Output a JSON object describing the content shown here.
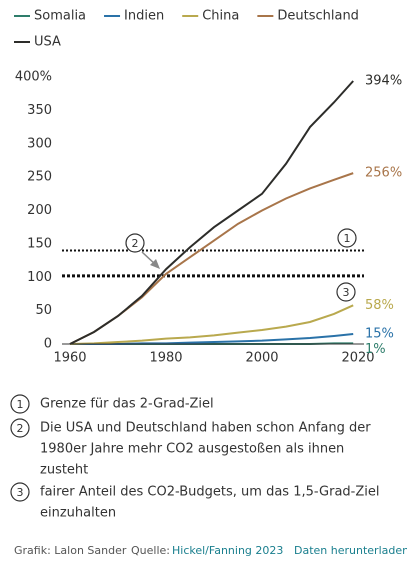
{
  "chart_data": {
    "type": "line",
    "x": [
      1960,
      1965,
      1970,
      1975,
      1980,
      1985,
      1990,
      1995,
      2000,
      2005,
      2010,
      2015,
      2019
    ],
    "series": [
      {
        "name": "Somalia",
        "color": "#2e7d6b",
        "values": [
          0,
          0,
          0,
          0,
          0,
          0,
          0,
          0,
          0,
          0,
          0,
          1,
          1
        ],
        "value_labels": [
          null,
          null,
          null,
          null,
          null,
          null,
          null,
          null,
          null,
          null,
          null,
          null,
          "1%"
        ]
      },
      {
        "name": "Indien",
        "color": "#2a72a8",
        "values": [
          0,
          0,
          0,
          1,
          1,
          2,
          3,
          4,
          5,
          7,
          9,
          12,
          15
        ],
        "value_labels": [
          null,
          null,
          null,
          null,
          null,
          null,
          null,
          null,
          null,
          null,
          null,
          null,
          "15%"
        ]
      },
      {
        "name": "China",
        "color": "#b9a94e",
        "values": [
          0,
          1,
          3,
          5,
          8,
          10,
          13,
          17,
          21,
          26,
          33,
          45,
          58
        ],
        "value_labels": [
          null,
          null,
          null,
          null,
          null,
          null,
          null,
          null,
          null,
          null,
          null,
          null,
          "58%"
        ]
      },
      {
        "name": "Deutschland",
        "color": "#a8754a",
        "values": [
          0,
          18,
          42,
          70,
          105,
          130,
          155,
          180,
          200,
          218,
          233,
          246,
          256
        ],
        "value_labels": [
          null,
          null,
          null,
          null,
          null,
          null,
          null,
          null,
          null,
          null,
          null,
          null,
          "256%"
        ]
      },
      {
        "name": "USA",
        "color": "#2d2d2a",
        "values": [
          0,
          18,
          42,
          72,
          112,
          145,
          175,
          200,
          225,
          270,
          325,
          362,
          394
        ],
        "value_labels": [
          null,
          null,
          null,
          null,
          null,
          null,
          null,
          null,
          null,
          null,
          null,
          null,
          "394%"
        ]
      }
    ],
    "xlim": [
      1960,
      2020
    ],
    "xticks": [
      1960,
      1980,
      2000,
      2020
    ],
    "ylim": [
      0,
      400
    ],
    "yticks": [
      0,
      50,
      100,
      150,
      200,
      250,
      300,
      {
        "value": 350,
        "label": "350"
      },
      {
        "value": 400,
        "label": "400%"
      }
    ],
    "reference_lines": [
      {
        "value": 140,
        "style": "thin-dotted"
      },
      {
        "value": 102,
        "style": "thick-dotted"
      }
    ],
    "notes": [
      {
        "marker": "1",
        "lines": [
          "Grenze für das 2-Grad-Ziel"
        ]
      },
      {
        "marker": "2",
        "lines": [
          "Die USA und Deutschland haben schon Anfang der",
          "1980er Jahre mehr CO2 ausgestoßen als ihnen",
          "zusteht"
        ]
      },
      {
        "marker": "3",
        "lines": [
          "fairer Anteil des CO2-Budgets, um das 1,5-Grad-Ziel",
          "einzuhalten"
        ]
      }
    ]
  },
  "footer": {
    "credit": "Grafik: Lalon Sander",
    "source_label": "Quelle:",
    "source_link": "Hickel/Fanning 2023",
    "download": "Daten herunterladen"
  }
}
